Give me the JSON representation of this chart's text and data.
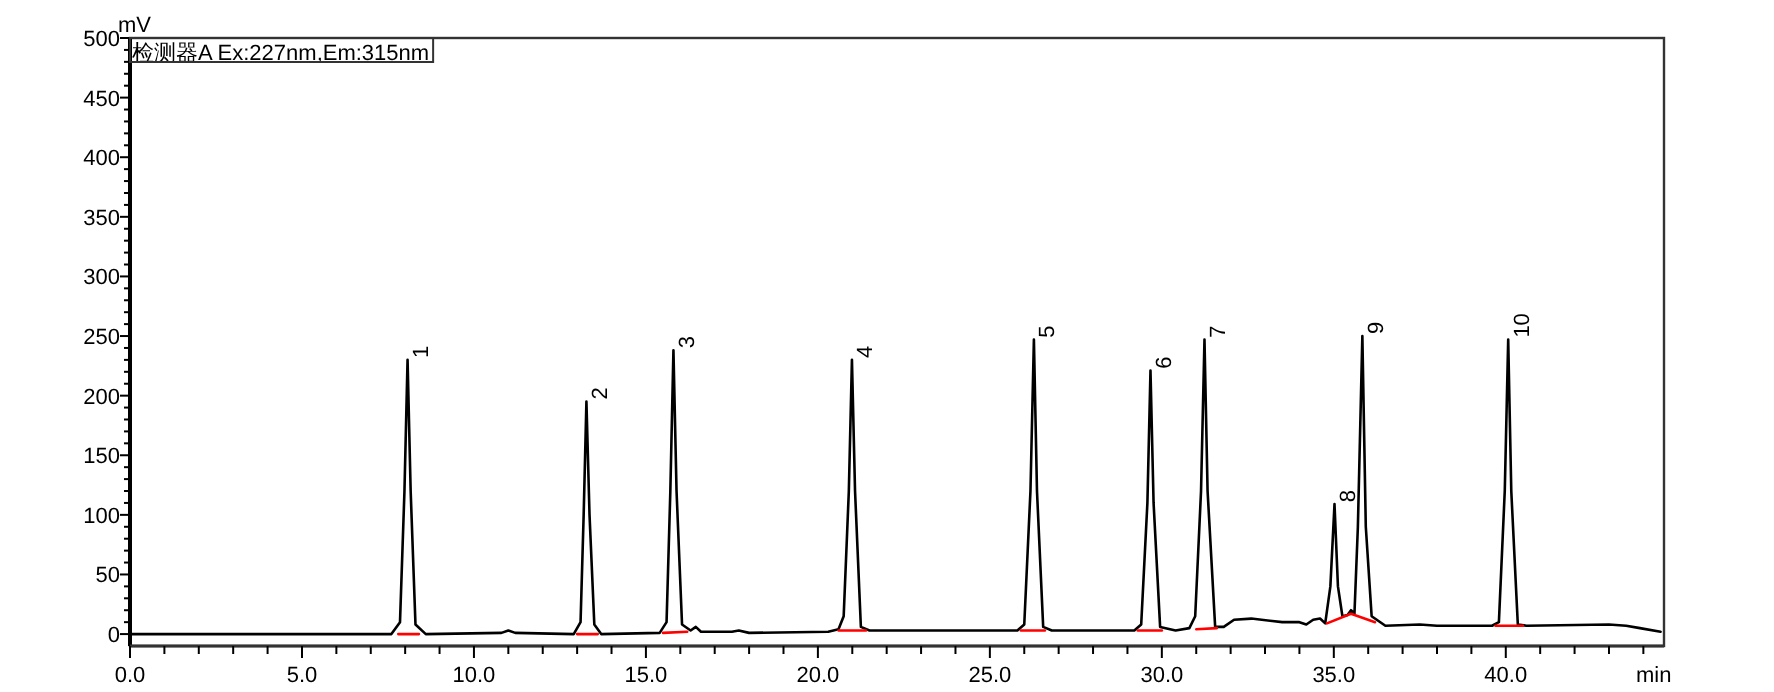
{
  "chart_data": {
    "type": "line",
    "title": "检测器A Ex:227nm,Em:315nm",
    "xlabel": "min",
    "ylabel": "mV",
    "xlim": [
      0,
      44.6
    ],
    "ylim": [
      -10,
      500
    ],
    "xticks": [
      {
        "value": 0,
        "label": "0.0"
      },
      {
        "value": 1,
        "label": null
      },
      {
        "value": 2,
        "label": null
      },
      {
        "value": 3,
        "label": null
      },
      {
        "value": 4,
        "label": null
      },
      {
        "value": 5,
        "label": "5.0"
      },
      {
        "value": 6,
        "label": null
      },
      {
        "value": 7,
        "label": null
      },
      {
        "value": 8,
        "label": null
      },
      {
        "value": 9,
        "label": null
      },
      {
        "value": 10,
        "label": "10.0"
      },
      {
        "value": 11,
        "label": null
      },
      {
        "value": 12,
        "label": null
      },
      {
        "value": 13,
        "label": null
      },
      {
        "value": 14,
        "label": null
      },
      {
        "value": 15,
        "label": "15.0"
      },
      {
        "value": 16,
        "label": null
      },
      {
        "value": 17,
        "label": null
      },
      {
        "value": 18,
        "label": null
      },
      {
        "value": 19,
        "label": null
      },
      {
        "value": 20,
        "label": "20.0"
      },
      {
        "value": 21,
        "label": null
      },
      {
        "value": 22,
        "label": null
      },
      {
        "value": 23,
        "label": null
      },
      {
        "value": 24,
        "label": null
      },
      {
        "value": 25,
        "label": "25.0"
      },
      {
        "value": 26,
        "label": null
      },
      {
        "value": 27,
        "label": null
      },
      {
        "value": 28,
        "label": null
      },
      {
        "value": 29,
        "label": null
      },
      {
        "value": 30,
        "label": "30.0"
      },
      {
        "value": 31,
        "label": null
      },
      {
        "value": 32,
        "label": null
      },
      {
        "value": 33,
        "label": null
      },
      {
        "value": 34,
        "label": null
      },
      {
        "value": 35,
        "label": "35.0"
      },
      {
        "value": 36,
        "label": null
      },
      {
        "value": 37,
        "label": null
      },
      {
        "value": 38,
        "label": null
      },
      {
        "value": 39,
        "label": null
      },
      {
        "value": 40,
        "label": "40.0"
      },
      {
        "value": 41,
        "label": null
      },
      {
        "value": 42,
        "label": null
      },
      {
        "value": 43,
        "label": null
      },
      {
        "value": 44,
        "label": null
      }
    ],
    "yticks": [
      0,
      {
        "value": 10,
        "label": null
      },
      {
        "value": 20,
        "label": null
      },
      {
        "value": 30,
        "label": null
      },
      {
        "value": 40,
        "label": null
      },
      50,
      {
        "value": 60,
        "label": null
      },
      {
        "value": 70,
        "label": null
      },
      {
        "value": 80,
        "label": null
      },
      {
        "value": 90,
        "label": null
      },
      100,
      {
        "value": 110,
        "label": null
      },
      {
        "value": 120,
        "label": null
      },
      {
        "value": 130,
        "label": null
      },
      {
        "value": 140,
        "label": null
      },
      150,
      {
        "value": 160,
        "label": null
      },
      {
        "value": 170,
        "label": null
      },
      {
        "value": 180,
        "label": null
      },
      {
        "value": 190,
        "label": null
      },
      200,
      {
        "value": 210,
        "label": null
      },
      {
        "value": 220,
        "label": null
      },
      {
        "value": 230,
        "label": null
      },
      {
        "value": 240,
        "label": null
      },
      250,
      {
        "value": 260,
        "label": null
      },
      {
        "value": 270,
        "label": null
      },
      {
        "value": 280,
        "label": null
      },
      {
        "value": 290,
        "label": null
      },
      300,
      {
        "value": 310,
        "label": null
      },
      {
        "value": 320,
        "label": null
      },
      {
        "value": 330,
        "label": null
      },
      {
        "value": 340,
        "label": null
      },
      350,
      {
        "value": 360,
        "label": null
      },
      {
        "value": 370,
        "label": null
      },
      {
        "value": 380,
        "label": null
      },
      {
        "value": 390,
        "label": null
      },
      400,
      {
        "value": 410,
        "label": null
      },
      {
        "value": 420,
        "label": null
      },
      {
        "value": 430,
        "label": null
      },
      {
        "value": 440,
        "label": null
      },
      450,
      {
        "value": 460,
        "label": null
      },
      {
        "value": 470,
        "label": null
      },
      {
        "value": 480,
        "label": null
      },
      {
        "value": 490,
        "label": null
      },
      500
    ],
    "grid": false,
    "series": [
      {
        "color": "#000000",
        "x": [
          0,
          7.6,
          7.85,
          7.98,
          8.07,
          8.16,
          8.3,
          8.6,
          10.8,
          11,
          11.2,
          12.9,
          13.1,
          13.19,
          13.27,
          13.36,
          13.5,
          13.7,
          15.4,
          15.6,
          15.71,
          15.8,
          15.89,
          16.05,
          16.3,
          16.45,
          16.6,
          17.5,
          17.7,
          18,
          20.3,
          20.6,
          20.75,
          20.9,
          20.99,
          21.08,
          21.25,
          21.5,
          25.8,
          26,
          26.18,
          26.28,
          26.37,
          26.55,
          26.8,
          29.2,
          29.4,
          29.58,
          29.67,
          29.76,
          29.95,
          30.4,
          30.8,
          30.97,
          31.14,
          31.24,
          31.33,
          31.55,
          31.8,
          32.1,
          32.6,
          33.5,
          34,
          34.2,
          34.4,
          34.6,
          34.75,
          34.9,
          35.02,
          35.12,
          35.25,
          35.4,
          35.5,
          35.6,
          35.7,
          35.83,
          35.93,
          36.1,
          36.5,
          37.5,
          38,
          39.6,
          39.8,
          39.97,
          40.07,
          40.16,
          40.35,
          40.6,
          43,
          43.5,
          43.9,
          44.5
        ],
        "values": [
          0,
          0,
          10,
          120,
          230,
          120,
          8,
          0,
          1,
          3,
          1,
          0,
          10,
          100,
          195,
          100,
          8,
          0,
          1,
          10,
          120,
          238,
          120,
          8,
          3,
          6,
          2,
          2,
          3,
          1,
          2,
          4,
          15,
          120,
          230,
          120,
          6,
          3,
          3,
          8,
          120,
          247,
          120,
          6,
          3,
          3,
          8,
          110,
          221,
          110,
          6,
          3,
          5,
          15,
          120,
          247,
          120,
          6,
          6,
          12,
          13,
          10,
          10,
          8,
          12,
          13,
          9,
          40,
          109,
          40,
          15,
          16,
          20,
          17,
          90,
          250,
          90,
          15,
          7,
          8,
          7,
          7,
          10,
          120,
          247,
          120,
          8,
          7,
          8,
          7,
          5,
          2
        ]
      },
      {
        "color": "#ff0000",
        "x": [
          7.8,
          8.4
        ],
        "values": [
          0,
          0
        ]
      },
      {
        "color": "#ff0000",
        "x": [
          13.0,
          13.6
        ],
        "values": [
          0,
          0
        ]
      },
      {
        "color": "#ff0000",
        "x": [
          15.5,
          16.2
        ],
        "values": [
          1,
          2
        ]
      },
      {
        "color": "#ff0000",
        "x": [
          20.6,
          21.4
        ],
        "values": [
          3,
          3
        ]
      },
      {
        "color": "#ff0000",
        "x": [
          25.9,
          26.6
        ],
        "values": [
          3,
          3
        ]
      },
      {
        "color": "#ff0000",
        "x": [
          29.3,
          30.0
        ],
        "values": [
          3,
          3
        ]
      },
      {
        "color": "#ff0000",
        "x": [
          31.0,
          31.6
        ],
        "values": [
          4,
          5
        ]
      },
      {
        "color": "#ff0000",
        "x": [
          34.8,
          35.5,
          36.2
        ],
        "values": [
          9,
          17,
          10
        ]
      },
      {
        "color": "#ff0000",
        "x": [
          39.7,
          40.5
        ],
        "values": [
          7,
          7
        ]
      }
    ],
    "annotations": [
      {
        "text": "1",
        "x": 8.07,
        "y": 230
      },
      {
        "text": "2",
        "x": 13.27,
        "y": 195
      },
      {
        "text": "3",
        "x": 15.8,
        "y": 238
      },
      {
        "text": "4",
        "x": 20.99,
        "y": 230
      },
      {
        "text": "5",
        "x": 26.28,
        "y": 247
      },
      {
        "text": "6",
        "x": 29.67,
        "y": 221
      },
      {
        "text": "7",
        "x": 31.24,
        "y": 247
      },
      {
        "text": "8",
        "x": 35.02,
        "y": 109
      },
      {
        "text": "9",
        "x": 35.83,
        "y": 250
      },
      {
        "text": "10",
        "x": 40.07,
        "y": 247
      }
    ]
  }
}
